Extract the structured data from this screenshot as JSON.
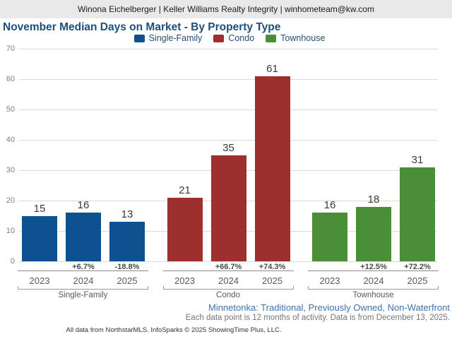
{
  "header": {
    "text": "Winona Eichelberger | Keller Williams Realty Integrity | winhometeam@kw.com"
  },
  "title": "November Median Days on Market - By Property Type",
  "chart_data": {
    "type": "bar",
    "title": "November Median Days on Market - By Property Type",
    "categories": [
      "2023",
      "2024",
      "2025"
    ],
    "series": [
      {
        "name": "Single-Family",
        "color": "#0e5190",
        "values": [
          15,
          16,
          13
        ],
        "pct_change": [
          "",
          "+6.7%",
          "-18.8%"
        ]
      },
      {
        "name": "Condo",
        "color": "#9d2f2f",
        "values": [
          21,
          35,
          61
        ],
        "pct_change": [
          "",
          "+66.7%",
          "+74.3%"
        ]
      },
      {
        "name": "Townhouse",
        "color": "#4a8e38",
        "values": [
          16,
          18,
          31
        ],
        "pct_change": [
          "",
          "+12.5%",
          "+72.2%"
        ]
      }
    ],
    "ylim": [
      0,
      70
    ],
    "yticks": [
      0,
      10,
      20,
      30,
      40,
      50,
      60,
      70
    ],
    "grid": true,
    "legend_position": "top",
    "xlabel": "",
    "ylabel": ""
  },
  "footer": {
    "filters": "Minnetonka: Traditional, Previously Owned, Non-Waterfront",
    "note": "Each data point is 12 months of activity. Data is from December 13, 2025.",
    "attribution": "All data from NorthstarMLS. InfoSparks © 2025 ShowingTime Plus, LLC."
  }
}
